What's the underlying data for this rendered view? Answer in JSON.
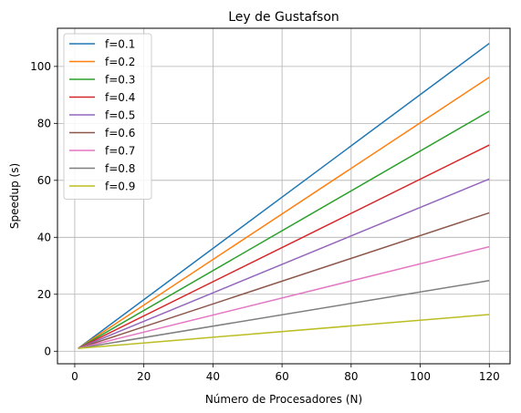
{
  "chart_data": {
    "type": "line",
    "title": "Ley de Gustafson",
    "xlabel": "Número de Procesadores (N)",
    "ylabel": "Speedup (s)",
    "xlim": [
      -5,
      126
    ],
    "ylim": [
      -4.4,
      113.4
    ],
    "xticks": [
      0,
      20,
      40,
      60,
      80,
      100,
      120
    ],
    "yticks": [
      0,
      20,
      40,
      60,
      80,
      100
    ],
    "grid": true,
    "legend_position": "top-left",
    "x": [
      1,
      120
    ],
    "series": [
      {
        "name": "f=0.1",
        "values": [
          1,
          108.1
        ],
        "color": "#1f77b4"
      },
      {
        "name": "f=0.2",
        "values": [
          1,
          96.2
        ],
        "color": "#ff7f0e"
      },
      {
        "name": "f=0.3",
        "values": [
          1,
          84.3
        ],
        "color": "#2ca02c"
      },
      {
        "name": "f=0.4",
        "values": [
          1,
          72.4
        ],
        "color": "#d62728"
      },
      {
        "name": "f=0.5",
        "values": [
          1,
          60.5
        ],
        "color": "#9467bd"
      },
      {
        "name": "f=0.6",
        "values": [
          1,
          48.6
        ],
        "color": "#8c564b"
      },
      {
        "name": "f=0.7",
        "values": [
          1,
          36.7
        ],
        "color": "#e377c2"
      },
      {
        "name": "f=0.8",
        "values": [
          1,
          24.8
        ],
        "color": "#7f7f7f"
      },
      {
        "name": "f=0.9",
        "values": [
          1,
          12.9
        ],
        "color": "#bcbd22"
      }
    ]
  }
}
